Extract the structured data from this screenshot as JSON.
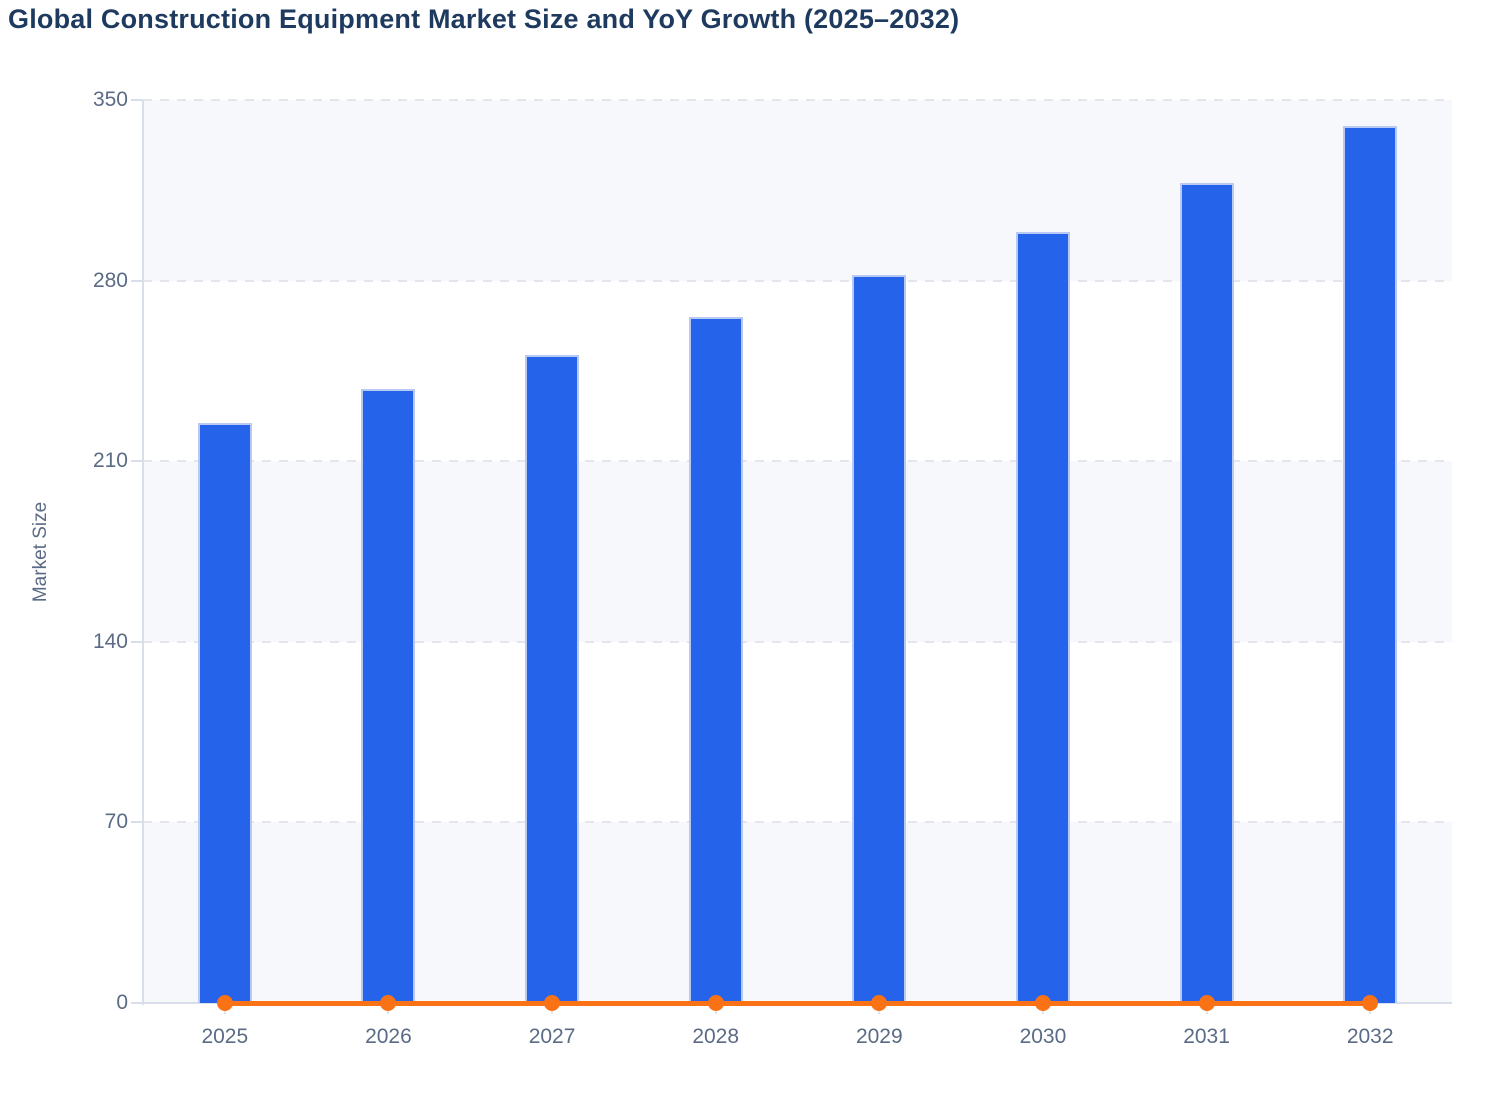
{
  "page": {
    "title": "Global Construction Equipment Market Size and YoY Growth (2025–2032)"
  },
  "y_axis": {
    "label": "Market Size",
    "ticks": [
      0,
      70,
      140,
      210,
      280,
      350
    ]
  },
  "x_axis": {
    "labels": [
      "2025",
      "2026",
      "2027",
      "2028",
      "2029",
      "2030",
      "2031",
      "2032"
    ]
  },
  "colors": {
    "bar_fill": "#2563eb",
    "bar_border": "#b9c9f3",
    "line": "#f97316",
    "title_text": "#1e3a5f",
    "axis_text": "#5b6b85",
    "gridline": "#e3e6ec",
    "axis_line": "#d8deea",
    "band_shade": "#f7f8fb",
    "band_plain": "#ffffff"
  },
  "chart_data": {
    "type": "bar",
    "title": "Global Construction Equipment Market Size and YoY Growth (2025–2032)",
    "categories": [
      "2025",
      "2026",
      "2027",
      "2028",
      "2029",
      "2030",
      "2031",
      "2032"
    ],
    "series": [
      {
        "name": "Market Size",
        "type": "bar",
        "values": [
          225,
          238,
          251,
          266,
          282,
          299,
          318,
          340
        ]
      },
      {
        "name": "YoY Growth",
        "type": "line",
        "values": [
          0,
          0,
          0,
          0,
          0,
          0,
          0,
          0
        ],
        "appearance": "flat orange line with point markers rendered at the 0 baseline of the shared axis"
      }
    ],
    "xlabel": "",
    "ylabel": "Market Size",
    "ylim": [
      0,
      350
    ],
    "grid": "dashed horizontal gridlines every 70 units, alternating shaded bands",
    "legend": "none"
  }
}
